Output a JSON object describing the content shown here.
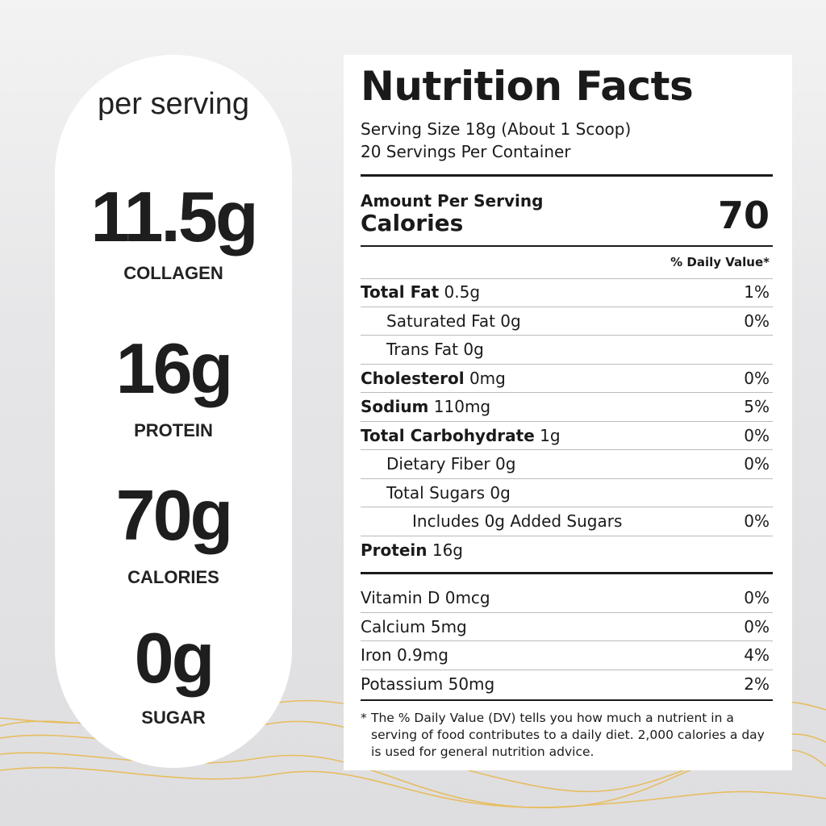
{
  "colors": {
    "background": "#e4e4e6",
    "wave": "#e8b84a",
    "card": "#ffffff",
    "text": "#1a1a1a"
  },
  "highlights": {
    "heading": "per serving",
    "items": [
      {
        "value": "11.5g",
        "label": "COLLAGEN"
      },
      {
        "value": "16g",
        "label": "PROTEIN"
      },
      {
        "value": "70g",
        "label": "CALORIES"
      },
      {
        "value": "0g",
        "label": "SUGAR"
      }
    ]
  },
  "facts": {
    "title": "Nutrition Facts",
    "serving_size": "Serving Size 18g (About 1 Scoop)",
    "servings": "20 Servings Per Container",
    "amount_label": "Amount Per Serving",
    "calories_label": "Calories",
    "calories_value": "70",
    "dv_header": "% Daily Value*",
    "nutrients": [
      {
        "name": "Total Fat",
        "amount": "0.5g",
        "dv": "1%"
      },
      {
        "name": "Saturated Fat",
        "amount": "0g",
        "dv": "0%"
      },
      {
        "name": "Trans Fat",
        "amount": "0g",
        "dv": ""
      },
      {
        "name": "Cholesterol",
        "amount": "0mg",
        "dv": "0%"
      },
      {
        "name": "Sodium",
        "amount": "110mg",
        "dv": "5%"
      },
      {
        "name": "Total Carbohydrate",
        "amount": "1g",
        "dv": "0%"
      },
      {
        "name": "Dietary Fiber",
        "amount": "0g",
        "dv": "0%"
      },
      {
        "name": "Total Sugars",
        "amount": "0g",
        "dv": ""
      },
      {
        "name": "Includes 0g Added Sugars",
        "amount": "",
        "dv": "0%"
      },
      {
        "name": "Protein",
        "amount": "16g",
        "dv": ""
      }
    ],
    "vitamins": [
      {
        "text": "Vitamin D 0mcg",
        "dv": "0%"
      },
      {
        "text": "Calcium 5mg",
        "dv": "0%"
      },
      {
        "text": "Iron 0.9mg",
        "dv": "4%"
      },
      {
        "text": "Potassium 50mg",
        "dv": "2%"
      }
    ],
    "footnote_mark": "*",
    "footnote": "The % Daily Value (DV) tells you how much a nutrient in a serving of food contributes to a daily diet. 2,000 calories a day is used for general nutrition advice."
  }
}
